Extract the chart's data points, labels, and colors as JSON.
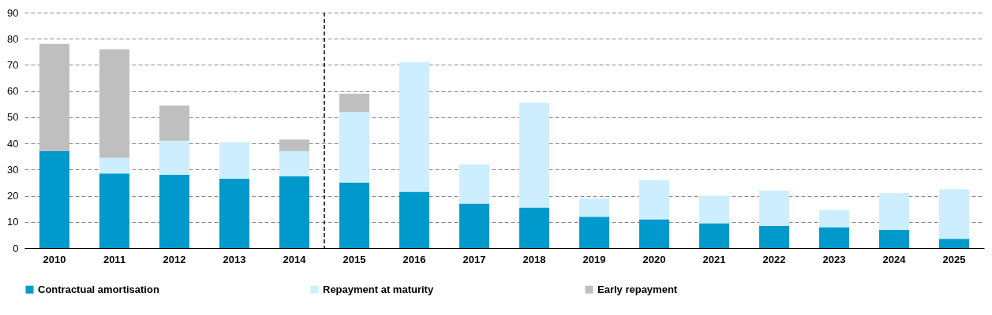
{
  "chart_data": {
    "type": "bar",
    "stacked": true,
    "categories": [
      "2010",
      "2011",
      "2012",
      "2013",
      "2014",
      "2015",
      "2016",
      "2017",
      "2018",
      "2019",
      "2020",
      "2021",
      "2022",
      "2023",
      "2024",
      "2025"
    ],
    "series": [
      {
        "name": "Contractual amortisation",
        "color": "#0099cc",
        "values": [
          37,
          28.5,
          28,
          26.5,
          27.5,
          25,
          21.5,
          17,
          15.5,
          12,
          11,
          9.5,
          8.5,
          8,
          7,
          3.5
        ]
      },
      {
        "name": "Repayment at maturity",
        "color": "#cceeff",
        "values": [
          0,
          6,
          13,
          14,
          9.5,
          27,
          49.5,
          15,
          40,
          7,
          15,
          10.5,
          13.5,
          6.5,
          14,
          19
        ]
      },
      {
        "name": "Early repayment",
        "color": "#bfbfbf",
        "values": [
          41,
          41.5,
          13.5,
          0,
          4.5,
          7,
          0,
          0,
          0,
          0,
          0,
          0,
          0,
          0,
          0,
          0
        ]
      }
    ],
    "ylim": [
      0,
      90
    ],
    "yticks": [
      0,
      10,
      20,
      30,
      40,
      50,
      60,
      70,
      80,
      90
    ],
    "grid": "y",
    "legend": "bottom",
    "ref_lines": [
      {
        "axis": "x",
        "value": "2015",
        "color": "#000000",
        "line_style": "dashed"
      }
    ]
  }
}
